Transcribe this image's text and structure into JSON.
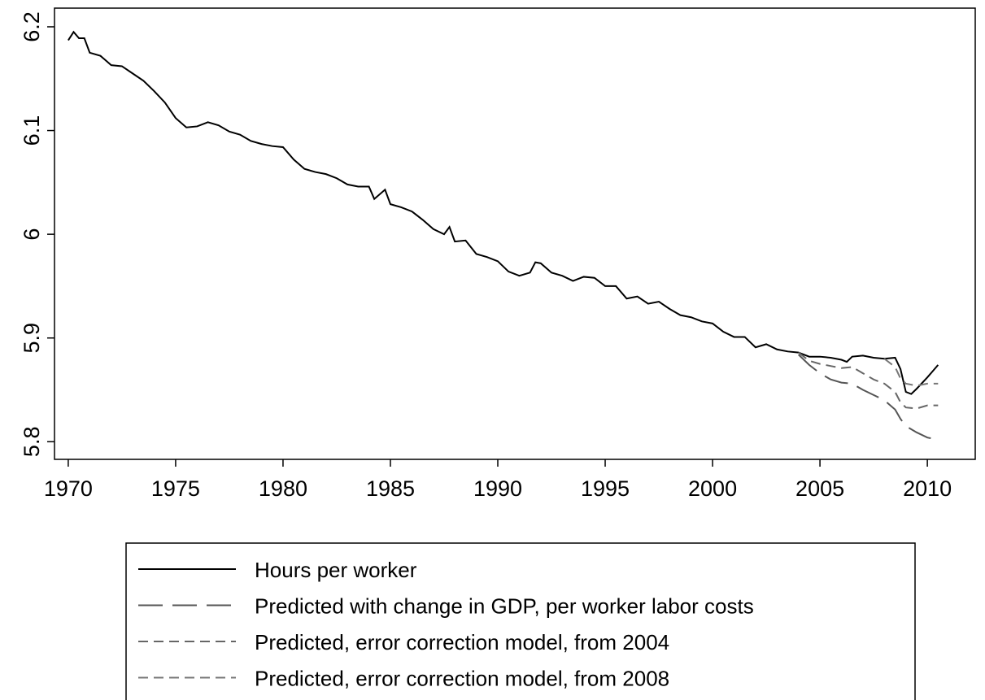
{
  "chart_data": {
    "type": "line",
    "xlim": [
      1969.36,
      2012.23
    ],
    "xticks": [
      1970,
      1975,
      1980,
      1985,
      1990,
      1995,
      2000,
      2005,
      2010
    ],
    "ylim": [
      5.783,
      6.218
    ],
    "yticks": [
      5.8,
      5.9,
      6,
      6.1,
      6.2
    ],
    "series": [
      {
        "name": "Hours per worker",
        "color": "#000000",
        "dash": "none",
        "x": [
          1970,
          1970.25,
          1970.5,
          1970.75,
          1971,
          1971.5,
          1972,
          1972.5,
          1973,
          1973.5,
          1974,
          1974.5,
          1975,
          1975.5,
          1976,
          1976.5,
          1977,
          1977.5,
          1978,
          1978.5,
          1979,
          1979.5,
          1980,
          1980.5,
          1981,
          1981.5,
          1982,
          1982.5,
          1983,
          1983.5,
          1984,
          1984.25,
          1984.75,
          1985,
          1985.5,
          1986,
          1986.5,
          1987,
          1987.5,
          1987.75,
          1988,
          1988.5,
          1989,
          1989.5,
          1990,
          1990.5,
          1991,
          1991.5,
          1991.75,
          1992,
          1992.5,
          1993,
          1993.5,
          1994,
          1994.5,
          1995,
          1995.5,
          1996,
          1996.5,
          1997,
          1997.5,
          1998,
          1998.5,
          1999,
          1999.5,
          2000,
          2000.5,
          2001,
          2001.5,
          2002,
          2002.5,
          2003,
          2003.5,
          2004,
          2004.5,
          2005,
          2005.5,
          2006,
          2006.25,
          2006.5,
          2007,
          2007.5,
          2008,
          2008.5,
          2008.75,
          2009,
          2009.25,
          2009.5,
          2010,
          2010.5
        ],
        "values": [
          6.187,
          6.195,
          6.189,
          6.189,
          6.175,
          6.172,
          6.163,
          6.162,
          6.155,
          6.148,
          6.138,
          6.127,
          6.112,
          6.103,
          6.104,
          6.108,
          6.105,
          6.099,
          6.096,
          6.09,
          6.087,
          6.085,
          6.084,
          6.072,
          6.063,
          6.06,
          6.058,
          6.054,
          6.048,
          6.046,
          6.046,
          6.034,
          6.043,
          6.029,
          6.026,
          6.022,
          6.014,
          6.005,
          6.0,
          6.007,
          5.993,
          5.994,
          5.981,
          5.978,
          5.974,
          5.964,
          5.96,
          5.963,
          5.973,
          5.972,
          5.963,
          5.96,
          5.955,
          5.959,
          5.958,
          5.95,
          5.95,
          5.938,
          5.94,
          5.933,
          5.935,
          5.928,
          5.922,
          5.92,
          5.916,
          5.914,
          5.906,
          5.901,
          5.901,
          5.891,
          5.894,
          5.889,
          5.887,
          5.886,
          5.882,
          5.882,
          5.881,
          5.879,
          5.877,
          5.882,
          5.883,
          5.881,
          5.88,
          5.881,
          5.87,
          5.848,
          5.846,
          5.851,
          5.862,
          5.874
        ]
      },
      {
        "name": "Predicted with change in GDP, per worker labor costs",
        "color": "#555555",
        "dash": "30 12",
        "x": [
          2004,
          2004.5,
          2005,
          2005.5,
          2006,
          2006.5,
          2007,
          2007.5,
          2008,
          2008.5,
          2008.75,
          2009,
          2009.5,
          2010,
          2010.5
        ],
        "values": [
          5.884,
          5.874,
          5.866,
          5.86,
          5.857,
          5.856,
          5.85,
          5.845,
          5.84,
          5.831,
          5.822,
          5.815,
          5.809,
          5.804,
          5.802
        ]
      },
      {
        "name": "Predicted, error correction model, from 2004",
        "color": "#666666",
        "dash": "12 7",
        "x": [
          2004,
          2004.5,
          2005,
          2005.5,
          2006,
          2006.5,
          2007,
          2007.5,
          2008,
          2008.5,
          2008.75,
          2009,
          2009.5,
          2010,
          2010.5
        ],
        "values": [
          5.886,
          5.878,
          5.875,
          5.873,
          5.871,
          5.872,
          5.866,
          5.86,
          5.856,
          5.848,
          5.838,
          5.833,
          5.832,
          5.835,
          5.835
        ]
      },
      {
        "name": "Predicted, error correction model, from 2008",
        "color": "#777777",
        "dash": "12 7",
        "x": [
          2008,
          2008.5,
          2008.75,
          2009,
          2009.5,
          2010,
          2010.5
        ],
        "values": [
          5.88,
          5.872,
          5.861,
          5.856,
          5.854,
          5.856,
          5.856
        ]
      }
    ]
  }
}
